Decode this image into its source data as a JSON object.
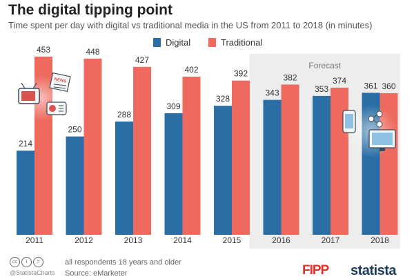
{
  "chart_data": {
    "type": "bar",
    "title": "The digital tipping point",
    "subtitle": "Time spent per day with digital vs traditional media in the US from 2011 to 2018 (in minutes)",
    "categories": [
      "2011",
      "2012",
      "2013",
      "2014",
      "2015",
      "2016",
      "2017",
      "2018"
    ],
    "series": [
      {
        "name": "Digital",
        "color": "#2a6ea6",
        "values": [
          214,
          250,
          288,
          309,
          328,
          343,
          353,
          361
        ]
      },
      {
        "name": "Traditional",
        "color": "#ee6a5e",
        "values": [
          453,
          448,
          427,
          402,
          392,
          382,
          374,
          360
        ]
      }
    ],
    "ylim": [
      0,
      460
    ],
    "forecast": {
      "label": "Forecast",
      "categories": [
        "2016",
        "2017",
        "2018"
      ]
    },
    "legend": "top-center",
    "grid": false
  },
  "footer": {
    "cc_icons": [
      "cc-icon",
      "person-icon",
      "equals-icon"
    ],
    "handle": "@StatistaCharts",
    "note": "all respondents 18 years and older",
    "source": "Source: eMarketer",
    "fipp_logo": "FIPP",
    "statista_logo": "statista"
  }
}
